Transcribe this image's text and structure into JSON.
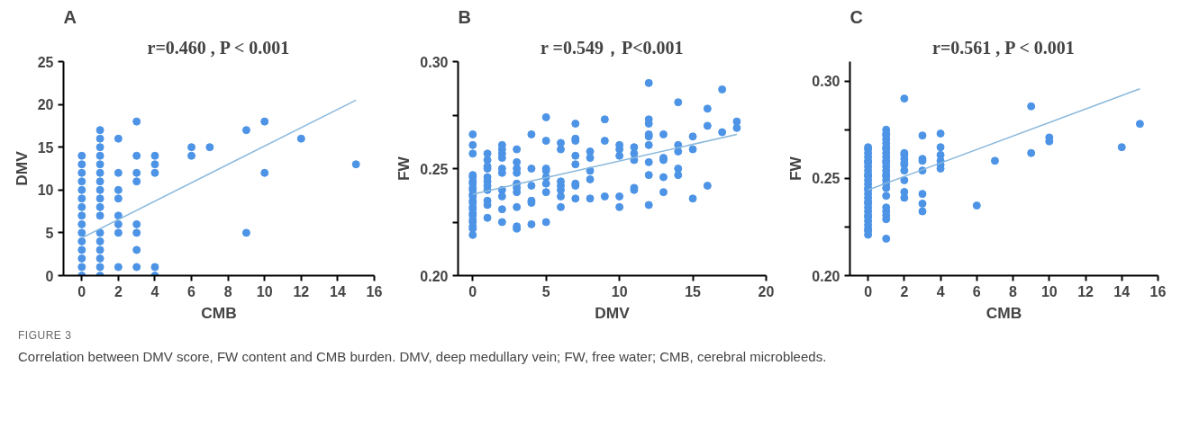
{
  "chart_data": [
    {
      "type": "scatter",
      "title": "r=0.460 , P < 0.001",
      "xlabel": "CMB",
      "ylabel": "DMV",
      "annotations": [
        "A"
      ],
      "marker": "circle",
      "grid": false,
      "xlim": [
        -1,
        16
      ],
      "xticks": [
        0,
        2,
        4,
        6,
        8,
        10,
        12,
        14,
        16
      ],
      "ylim": [
        0,
        25
      ],
      "yticks": [
        0,
        5,
        10,
        15,
        20,
        25
      ],
      "series": [
        {
          "color": "#4d94e6",
          "x": [
            0,
            0,
            0,
            0,
            0,
            0,
            0,
            0,
            0,
            0,
            0,
            0,
            0,
            0,
            0,
            1,
            1,
            1,
            1,
            1,
            1,
            1,
            1,
            1,
            1,
            1,
            1,
            1,
            1,
            1,
            1,
            1,
            2,
            2,
            2,
            2,
            2,
            2,
            2,
            2,
            3,
            3,
            3,
            3,
            3,
            3,
            3,
            3,
            4,
            4,
            4,
            4,
            4,
            6,
            6,
            7,
            9,
            9,
            10,
            10,
            12,
            15
          ],
          "values": [
            0,
            1,
            2,
            3,
            4,
            5,
            6,
            7,
            8,
            9,
            10,
            11,
            12,
            13,
            14,
            0,
            1,
            2,
            3,
            4,
            5,
            7,
            8,
            9,
            10,
            11,
            12,
            13,
            14,
            15,
            16,
            17,
            1,
            5,
            6,
            7,
            9,
            10,
            12,
            16,
            1,
            3,
            5,
            6,
            11,
            12,
            14,
            18,
            0,
            1,
            12,
            13,
            14,
            14,
            15,
            15,
            5,
            17,
            12,
            18,
            16,
            13
          ]
        },
        {
          "type": "line",
          "color": "#8ab8dc",
          "x": [
            0,
            15
          ],
          "values": [
            4.4,
            20.5
          ],
          "marker": "none"
        }
      ]
    },
    {
      "type": "scatter",
      "title": "r =0.549，P<0.001",
      "xlabel": "DMV",
      "ylabel": "FW",
      "annotations": [
        "B"
      ],
      "marker": "circle",
      "grid": false,
      "xlim": [
        -1,
        20
      ],
      "xticks": [
        0,
        5,
        10,
        15,
        20
      ],
      "ylim": [
        0.2,
        0.3
      ],
      "yticks": [
        {
          "value": 0.2,
          "label": "0.20"
        },
        {
          "value": 0.225,
          "label": null
        },
        {
          "value": 0.25,
          "label": "0.25"
        },
        {
          "value": 0.275,
          "label": null
        },
        {
          "value": 0.3,
          "label": "0.30"
        }
      ],
      "series": [
        {
          "color": "#4d94e6",
          "x": [
            0,
            0,
            0,
            0,
            0,
            0,
            0,
            0,
            0,
            0,
            0,
            0,
            0,
            0,
            0,
            0,
            0,
            0,
            0,
            0,
            0,
            0,
            1,
            1,
            1,
            1,
            1,
            1,
            1,
            1,
            1,
            1,
            1,
            2,
            2,
            2,
            2,
            2,
            2,
            2,
            2,
            2,
            2,
            3,
            3,
            3,
            3,
            3,
            3,
            3,
            3,
            3,
            3,
            4,
            4,
            4,
            4,
            4,
            4,
            5,
            5,
            5,
            5,
            5,
            5,
            5,
            5,
            6,
            6,
            6,
            6,
            6,
            6,
            6,
            7,
            7,
            7,
            7,
            7,
            7,
            7,
            7,
            8,
            8,
            8,
            8,
            8,
            9,
            9,
            9,
            10,
            10,
            10,
            10,
            10,
            11,
            11,
            11,
            11,
            11,
            12,
            12,
            12,
            12,
            12,
            12,
            12,
            12,
            12,
            13,
            13,
            13,
            13,
            13,
            14,
            14,
            14,
            14,
            14,
            15,
            15,
            15,
            16,
            16,
            16,
            17,
            17,
            18,
            18
          ],
          "values": [
            0.266,
            0.261,
            0.257,
            0.247,
            0.246,
            0.244,
            0.243,
            0.241,
            0.24,
            0.238,
            0.237,
            0.235,
            0.234,
            0.232,
            0.231,
            0.229,
            0.228,
            0.226,
            0.225,
            0.223,
            0.222,
            0.219,
            0.257,
            0.254,
            0.251,
            0.25,
            0.246,
            0.244,
            0.242,
            0.24,
            0.235,
            0.233,
            0.227,
            0.261,
            0.259,
            0.257,
            0.255,
            0.25,
            0.248,
            0.24,
            0.237,
            0.231,
            0.225,
            0.259,
            0.253,
            0.25,
            0.248,
            0.243,
            0.241,
            0.239,
            0.232,
            0.223,
            0.222,
            0.266,
            0.25,
            0.242,
            0.235,
            0.234,
            0.224,
            0.274,
            0.263,
            0.25,
            0.249,
            0.246,
            0.243,
            0.239,
            0.225,
            0.262,
            0.259,
            0.244,
            0.242,
            0.24,
            0.237,
            0.232,
            0.271,
            0.264,
            0.263,
            0.256,
            0.252,
            0.243,
            0.242,
            0.236,
            0.258,
            0.255,
            0.249,
            0.245,
            0.236,
            0.273,
            0.263,
            0.237,
            0.261,
            0.259,
            0.256,
            0.237,
            0.232,
            0.26,
            0.257,
            0.254,
            0.241,
            0.24,
            0.29,
            0.273,
            0.271,
            0.266,
            0.265,
            0.261,
            0.253,
            0.247,
            0.233,
            0.266,
            0.255,
            0.254,
            0.246,
            0.239,
            0.281,
            0.261,
            0.258,
            0.25,
            0.247,
            0.265,
            0.259,
            0.236,
            0.278,
            0.27,
            0.242,
            0.287,
            0.267,
            0.272,
            0.269
          ]
        },
        {
          "type": "line",
          "color": "#8ab8dc",
          "x": [
            0,
            18
          ],
          "values": [
            0.238,
            0.266
          ],
          "marker": "none"
        }
      ]
    },
    {
      "type": "scatter",
      "title": "r=0.561 , P < 0.001",
      "xlabel": "CMB",
      "ylabel": "FW",
      "annotations": [
        "C",
        "FIGURE 3",
        "Correlation between DMV score, FW content and CMB burden. DMV, deep medullary vein; FW, free water; CMB, cerebral microbleeds."
      ],
      "marker": "circle",
      "grid": false,
      "xlim": [
        -1,
        16
      ],
      "xticks": [
        0,
        2,
        4,
        6,
        8,
        10,
        12,
        14,
        16
      ],
      "ylim": [
        0.2,
        0.31
      ],
      "yticks": [
        {
          "value": 0.2,
          "label": "0.20"
        },
        {
          "value": 0.225,
          "label": null
        },
        {
          "value": 0.25,
          "label": "0.25"
        },
        {
          "value": 0.275,
          "label": null
        },
        {
          "value": 0.3,
          "label": "0.30"
        }
      ],
      "series": [
        {
          "color": "#4d94e6",
          "x": [
            0,
            0,
            0,
            0,
            0,
            0,
            0,
            0,
            0,
            0,
            0,
            0,
            0,
            0,
            0,
            0,
            0,
            0,
            0,
            0,
            0,
            0,
            0,
            0,
            0,
            0,
            0,
            1,
            1,
            1,
            1,
            1,
            1,
            1,
            1,
            1,
            1,
            1,
            1,
            1,
            1,
            1,
            1,
            1,
            1,
            1,
            1,
            1,
            1,
            1,
            1,
            2,
            2,
            2,
            2,
            2,
            2,
            2,
            2,
            2,
            2,
            3,
            3,
            3,
            3,
            3,
            3,
            3,
            4,
            4,
            4,
            4,
            4,
            4,
            6,
            7,
            9,
            9,
            10,
            10,
            14,
            15
          ],
          "values": [
            0.266,
            0.265,
            0.263,
            0.261,
            0.259,
            0.258,
            0.256,
            0.254,
            0.252,
            0.251,
            0.249,
            0.247,
            0.245,
            0.244,
            0.242,
            0.24,
            0.238,
            0.237,
            0.235,
            0.233,
            0.231,
            0.23,
            0.228,
            0.226,
            0.224,
            0.223,
            0.221,
            0.275,
            0.273,
            0.272,
            0.27,
            0.268,
            0.266,
            0.265,
            0.263,
            0.261,
            0.259,
            0.258,
            0.256,
            0.254,
            0.252,
            0.251,
            0.249,
            0.247,
            0.245,
            0.241,
            0.235,
            0.233,
            0.231,
            0.229,
            0.219,
            0.291,
            0.263,
            0.262,
            0.26,
            0.258,
            0.257,
            0.254,
            0.249,
            0.243,
            0.24,
            0.272,
            0.26,
            0.259,
            0.254,
            0.242,
            0.237,
            0.233,
            0.273,
            0.266,
            0.262,
            0.259,
            0.257,
            0.255,
            0.236,
            0.259,
            0.287,
            0.263,
            0.271,
            0.269,
            0.266,
            0.278
          ]
        },
        {
          "type": "line",
          "color": "#8ab8dc",
          "x": [
            0,
            15
          ],
          "values": [
            0.244,
            0.296
          ],
          "marker": "none"
        }
      ]
    }
  ]
}
